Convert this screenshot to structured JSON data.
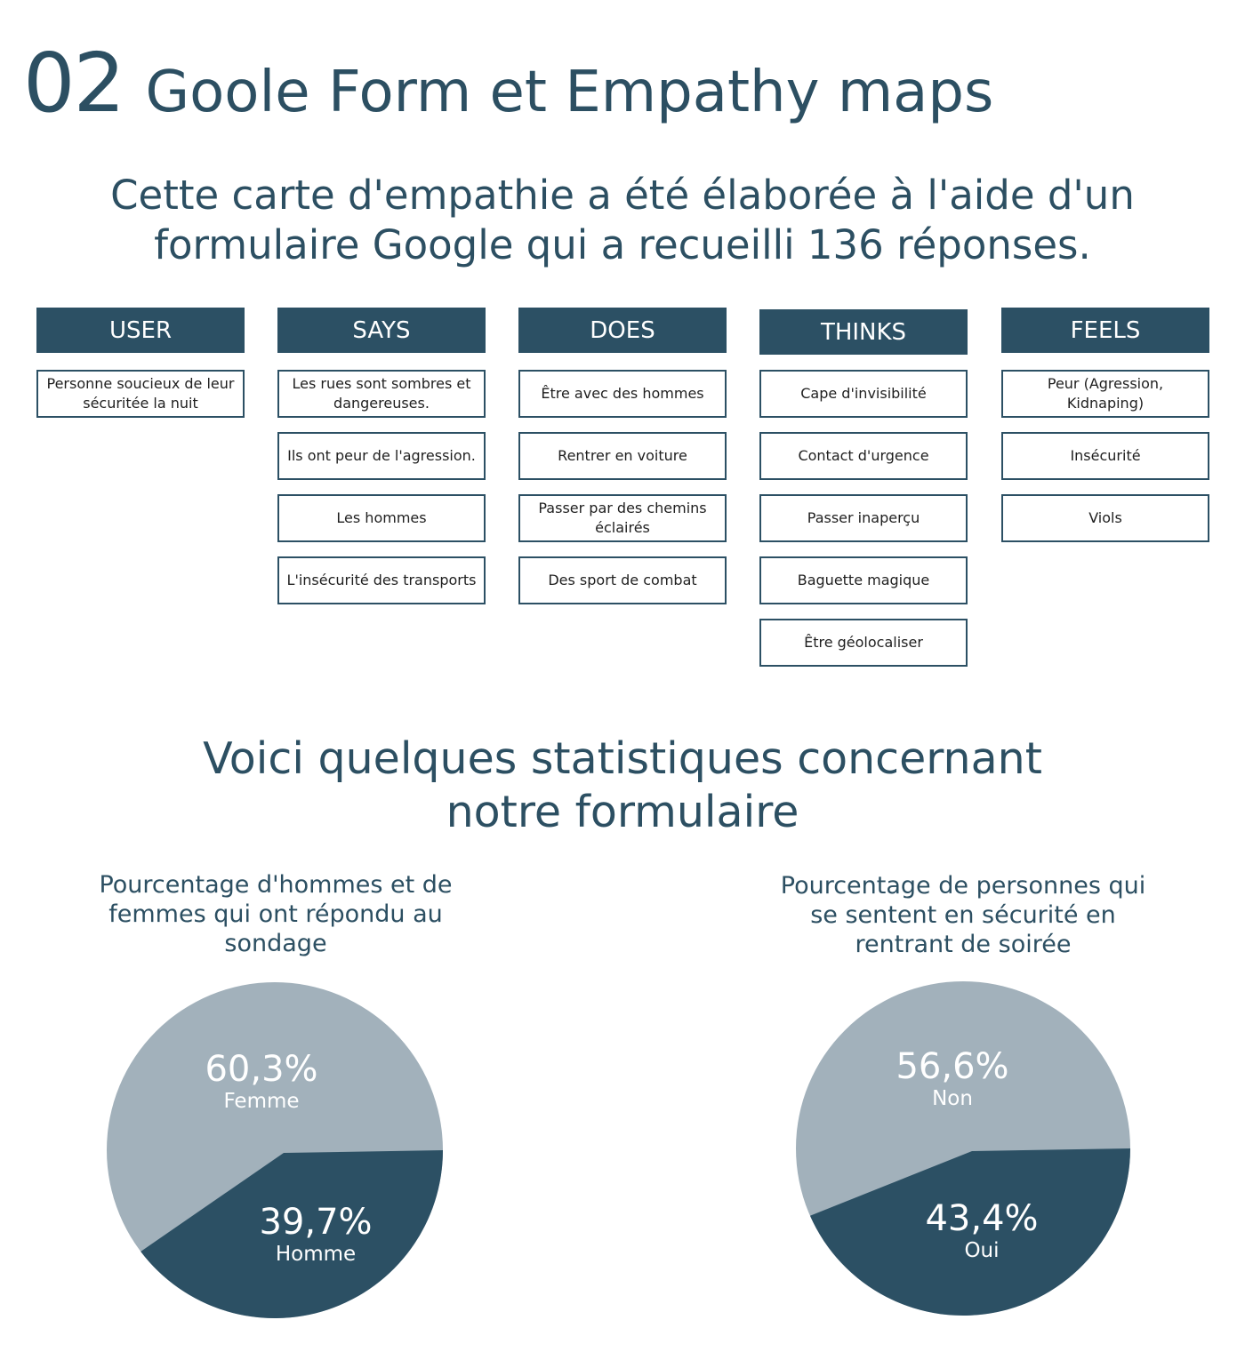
{
  "header": {
    "number": "02",
    "title": "Goole Form et Empathy maps"
  },
  "intro": {
    "line1": "Cette carte d'empathie a été élaborée à l'aide d'un",
    "line2": "formulaire Google qui a recueilli 136 réponses."
  },
  "empathy_map": {
    "columns": [
      {
        "title": "USER",
        "items": [
          "Personne soucieux de leur sécuritée la nuit"
        ]
      },
      {
        "title": "SAYS",
        "items": [
          "Les rues sont sombres et dangereuses.",
          "Ils ont peur de l'agression.",
          "Les hommes",
          "L'insécurité des transports"
        ]
      },
      {
        "title": "DOES",
        "items": [
          "Être avec des hommes",
          "Rentrer en voiture",
          "Passer par des chemins éclairés",
          "Des sport de combat"
        ]
      },
      {
        "title": "THINKS",
        "items": [
          "Cape d'invisibilité",
          "Contact d'urgence",
          "Passer inaperçu",
          "Baguette magique",
          "Être géolocaliser"
        ]
      },
      {
        "title": "FEELS",
        "items": [
          "Peur (Agression, Kidnaping)",
          "Insécurité",
          "Viols"
        ]
      }
    ]
  },
  "stats": {
    "line1": "Voici quelques statistiques concernant",
    "line2": "notre formulaire"
  },
  "chart_data": [
    {
      "type": "pie",
      "title_lines": [
        "Pourcentage d'hommes et de",
        "femmes qui ont répondu au",
        "sondage"
      ],
      "slices": [
        {
          "label": "Femme",
          "value": 60.3,
          "display": "60,3%",
          "color": "#a2b1bb"
        },
        {
          "label": "Homme",
          "value": 39.7,
          "display": "39,7%",
          "color": "#2c5064"
        }
      ]
    },
    {
      "type": "pie",
      "title_lines": [
        "Pourcentage de personnes qui",
        "se sentent en sécurité en",
        "rentrant de soirée"
      ],
      "slices": [
        {
          "label": "Non",
          "value": 56.6,
          "display": "56,6%",
          "color": "#a2b1bb"
        },
        {
          "label": "Oui",
          "value": 43.4,
          "display": "43,4%",
          "color": "#2c5064"
        }
      ]
    }
  ]
}
